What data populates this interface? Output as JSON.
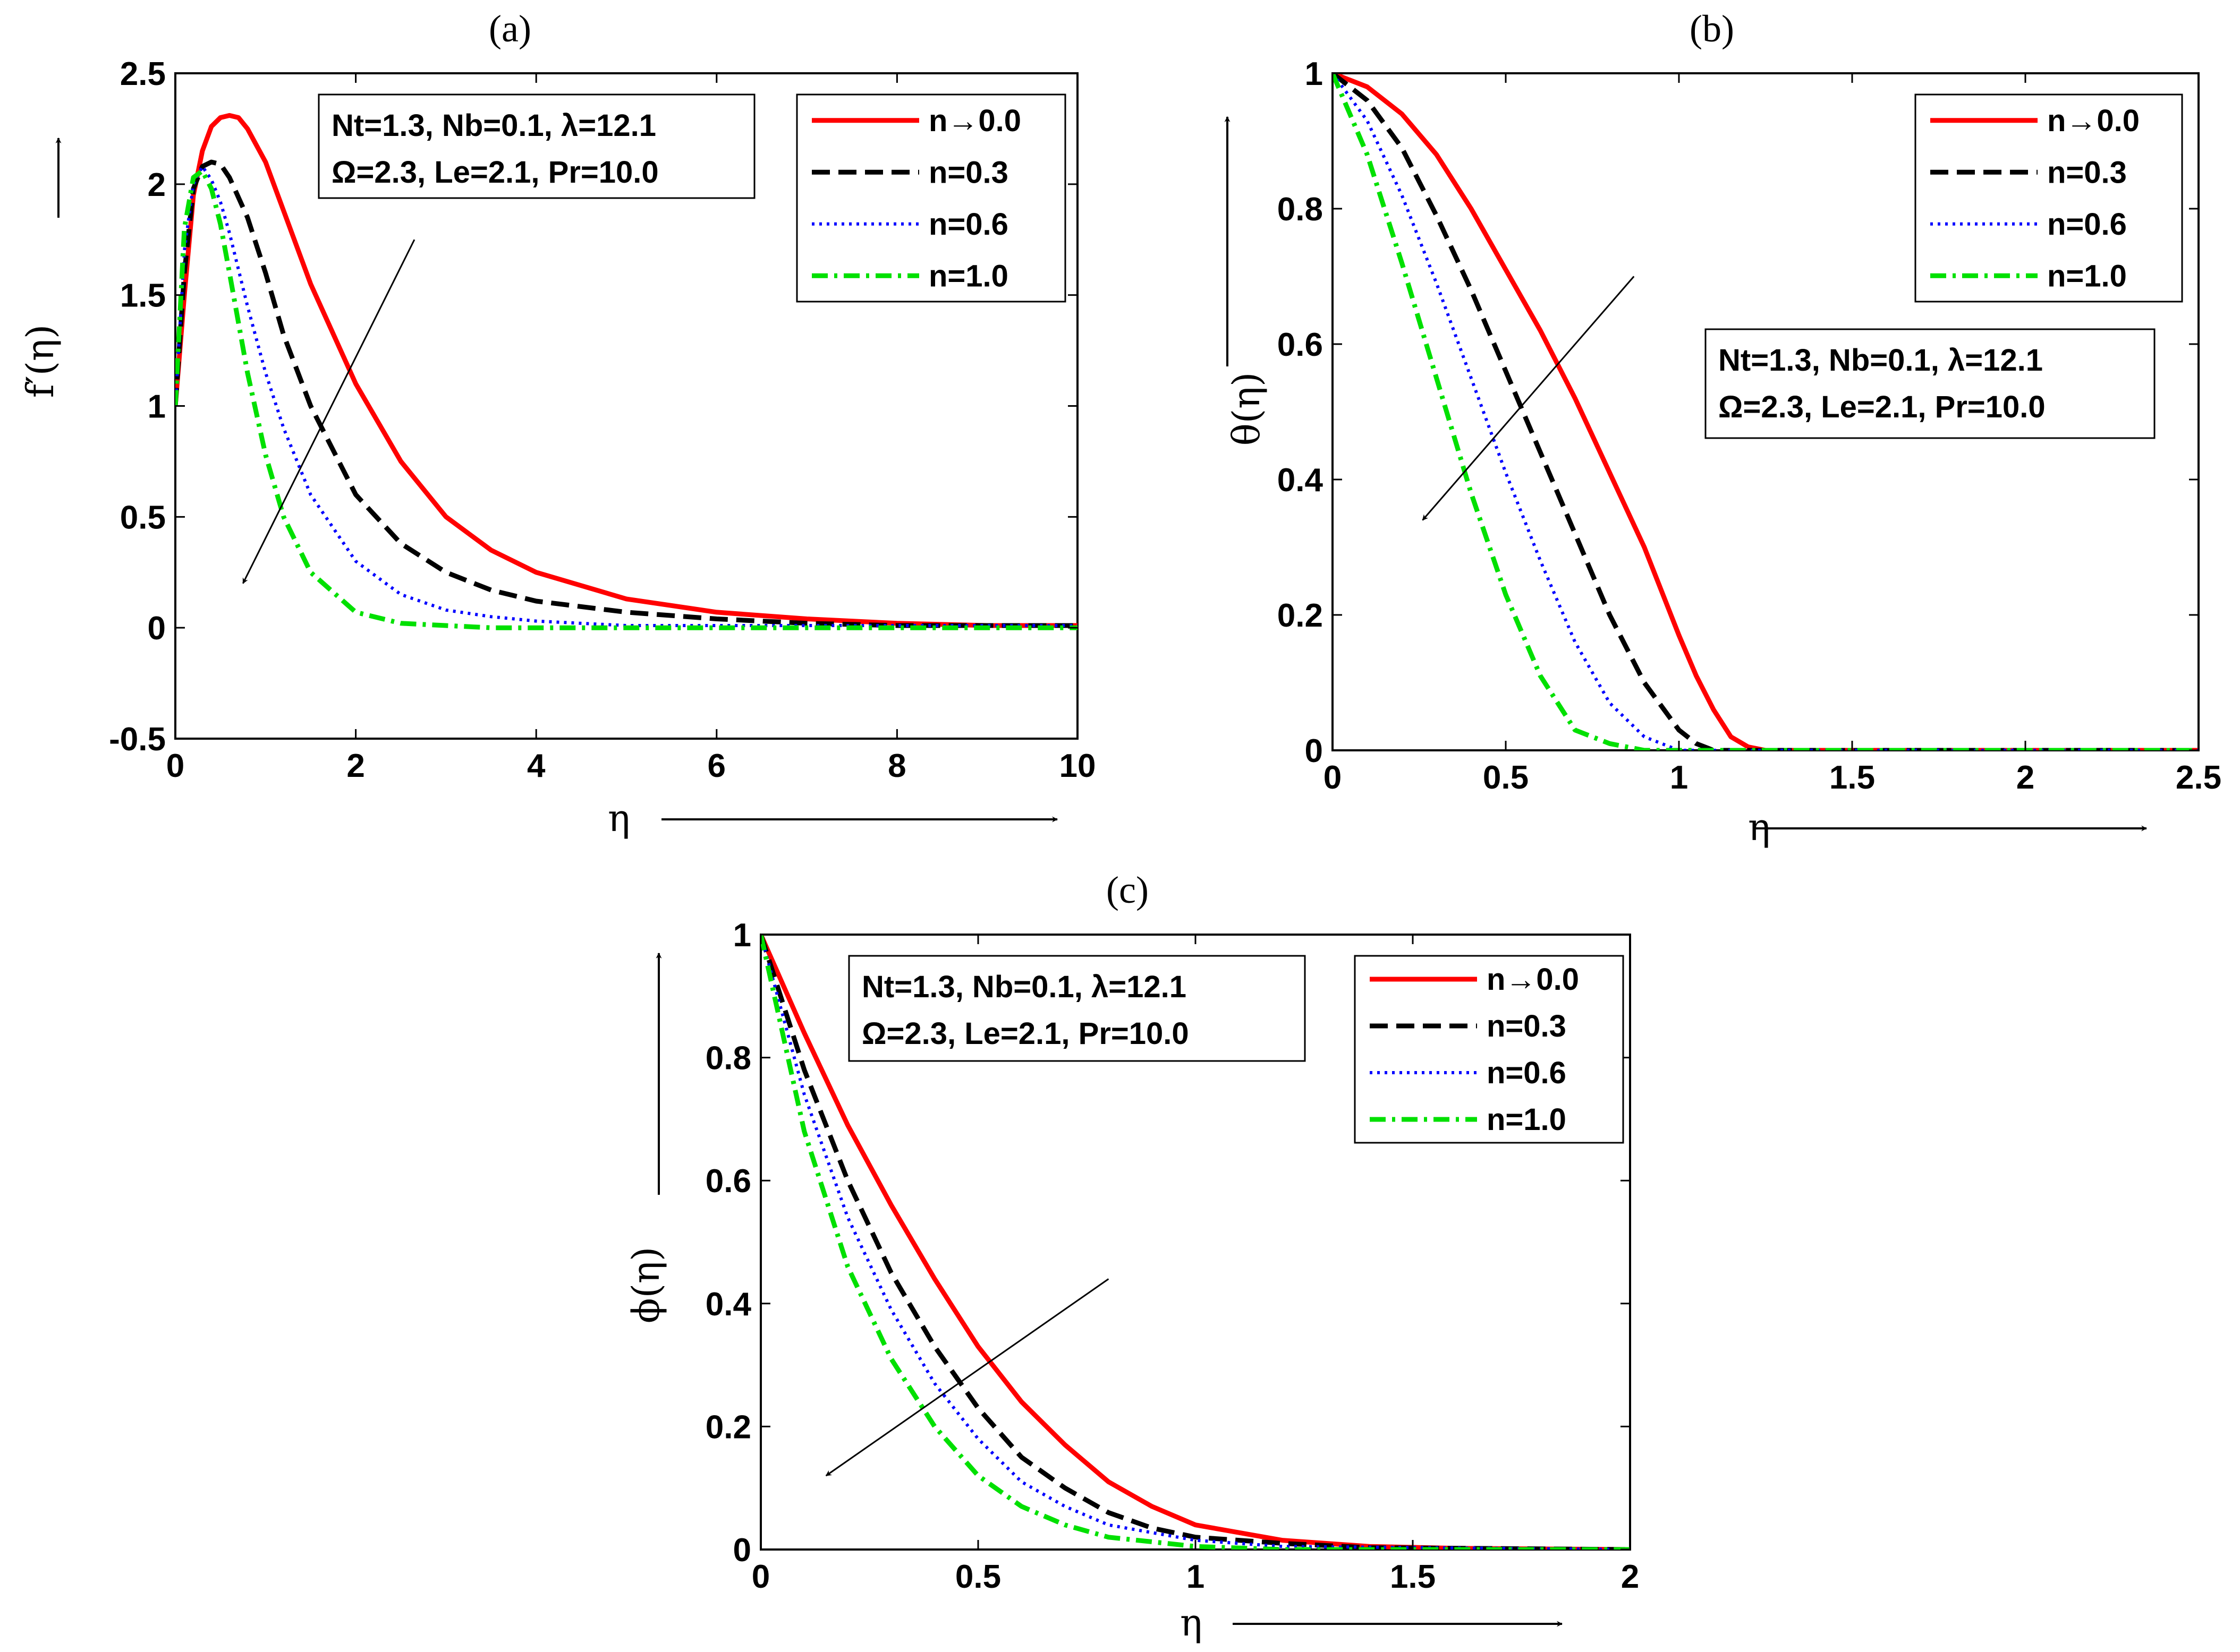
{
  "figure": {
    "colors": {
      "series": [
        "#ff0000",
        "#000000",
        "#0000ff",
        "#00e000"
      ]
    }
  },
  "chart_data": [
    {
      "id": "a",
      "type": "line",
      "panel_label": "(a)",
      "xlabel": "η",
      "ylabel": "f′(η)",
      "xlim": [
        0,
        10
      ],
      "ylim": [
        -0.5,
        2.5
      ],
      "xticks": [
        0,
        2,
        4,
        6,
        8,
        10
      ],
      "yticks": [
        -0.5,
        0,
        0.5,
        1,
        1.5,
        2,
        2.5
      ],
      "xtick_labels": [
        "0",
        "2",
        "4",
        "6",
        "8",
        "10"
      ],
      "ytick_labels": [
        "-0.5",
        "0",
        "0.5",
        "1",
        "1.5",
        "2",
        "2.5"
      ],
      "legend_position": "top-right",
      "params_position": "top-left",
      "params": [
        "Nt=1.3, Nb=0.1, λ=12.1",
        "Ω=2.3, Le=2.1, Pr=10.0"
      ],
      "trend_arrow": {
        "from": [
          2.65,
          1.75
        ],
        "to": [
          0.75,
          0.2
        ],
        "meaning": "increasing n"
      },
      "series": [
        {
          "name": "n→0.0",
          "style": "solid",
          "x": [
            0,
            0.1,
            0.2,
            0.3,
            0.4,
            0.5,
            0.6,
            0.7,
            0.8,
            1.0,
            1.2,
            1.5,
            2.0,
            2.5,
            3.0,
            3.5,
            4.0,
            5.0,
            6.0,
            7.0,
            8.0,
            9.0,
            10.0
          ],
          "y": [
            1.0,
            1.5,
            1.95,
            2.15,
            2.26,
            2.3,
            2.31,
            2.3,
            2.25,
            2.1,
            1.88,
            1.55,
            1.1,
            0.75,
            0.5,
            0.35,
            0.25,
            0.13,
            0.07,
            0.04,
            0.02,
            0.01,
            0.01
          ]
        },
        {
          "name": "n=0.3",
          "style": "dashed",
          "x": [
            0,
            0.1,
            0.2,
            0.3,
            0.4,
            0.5,
            0.6,
            0.8,
            1.0,
            1.2,
            1.5,
            2.0,
            2.5,
            3.0,
            3.5,
            4.0,
            5.0,
            6.0,
            7.0,
            8.0,
            10.0
          ],
          "y": [
            1.0,
            1.6,
            1.98,
            2.08,
            2.1,
            2.09,
            2.03,
            1.85,
            1.6,
            1.32,
            1.0,
            0.6,
            0.38,
            0.25,
            0.17,
            0.12,
            0.07,
            0.04,
            0.02,
            0.01,
            0.01
          ]
        },
        {
          "name": "n=0.6",
          "style": "dotted",
          "x": [
            0,
            0.1,
            0.2,
            0.3,
            0.4,
            0.5,
            0.6,
            0.8,
            1.0,
            1.2,
            1.5,
            2.0,
            2.5,
            3.0,
            3.5,
            4.0,
            5.0,
            6.0,
            10.0
          ],
          "y": [
            1.0,
            1.7,
            2.0,
            2.08,
            2.02,
            1.92,
            1.78,
            1.45,
            1.15,
            0.9,
            0.6,
            0.3,
            0.15,
            0.08,
            0.05,
            0.03,
            0.01,
            0.01,
            0.01
          ]
        },
        {
          "name": "n=1.0",
          "style": "dashdot",
          "x": [
            0,
            0.1,
            0.2,
            0.3,
            0.4,
            0.5,
            0.6,
            0.8,
            1.0,
            1.2,
            1.5,
            2.0,
            2.5,
            3.0,
            3.5,
            4.0,
            5.0,
            10.0
          ],
          "y": [
            1.0,
            1.8,
            2.03,
            2.06,
            1.98,
            1.82,
            1.6,
            1.15,
            0.78,
            0.5,
            0.25,
            0.07,
            0.02,
            0.01,
            0.0,
            0.0,
            0.0,
            0.0
          ]
        }
      ]
    },
    {
      "id": "b",
      "type": "line",
      "panel_label": "(b)",
      "xlabel": "η",
      "ylabel": "θ(η)",
      "xlim": [
        0,
        2.5
      ],
      "ylim": [
        0,
        1
      ],
      "xticks": [
        0,
        0.5,
        1,
        1.5,
        2,
        2.5
      ],
      "yticks": [
        0,
        0.2,
        0.4,
        0.6,
        0.8,
        1
      ],
      "xtick_labels": [
        "0",
        "0.5",
        "1",
        "1.5",
        "2",
        "2.5"
      ],
      "ytick_labels": [
        "0",
        "0.2",
        "0.4",
        "0.6",
        "0.8",
        "1"
      ],
      "legend_position": "top-right",
      "params_position": "middle-right",
      "params": [
        "Nt=1.3, Nb=0.1, λ=12.1",
        "Ω=2.3, Le=2.1, Pr=10.0"
      ],
      "trend_arrow": {
        "from": [
          0.87,
          0.7
        ],
        "to": [
          0.26,
          0.34
        ],
        "meaning": "increasing n"
      },
      "series": [
        {
          "name": "n→0.0",
          "style": "solid",
          "x": [
            0,
            0.1,
            0.2,
            0.3,
            0.4,
            0.5,
            0.6,
            0.7,
            0.8,
            0.9,
            1.0,
            1.05,
            1.1,
            1.15,
            1.2,
            1.25,
            1.5,
            2.0,
            2.5
          ],
          "y": [
            1.0,
            0.98,
            0.94,
            0.88,
            0.8,
            0.71,
            0.62,
            0.52,
            0.41,
            0.3,
            0.17,
            0.11,
            0.06,
            0.02,
            0.005,
            0.0,
            0.0,
            0.0,
            0.0
          ]
        },
        {
          "name": "n=0.3",
          "style": "dashed",
          "x": [
            0,
            0.1,
            0.2,
            0.3,
            0.4,
            0.5,
            0.6,
            0.7,
            0.8,
            0.9,
            1.0,
            1.05,
            1.1,
            1.15,
            1.5,
            2.0,
            2.5
          ],
          "y": [
            1.0,
            0.96,
            0.89,
            0.79,
            0.68,
            0.56,
            0.44,
            0.32,
            0.2,
            0.1,
            0.03,
            0.01,
            0.0,
            0.0,
            0.0,
            0.0,
            0.0
          ]
        },
        {
          "name": "n=0.6",
          "style": "dotted",
          "x": [
            0,
            0.1,
            0.2,
            0.3,
            0.4,
            0.5,
            0.6,
            0.7,
            0.8,
            0.9,
            1.0,
            1.5,
            2.0,
            2.5
          ],
          "y": [
            1.0,
            0.93,
            0.82,
            0.69,
            0.55,
            0.41,
            0.28,
            0.16,
            0.07,
            0.02,
            0.0,
            0.0,
            0.0,
            0.0
          ]
        },
        {
          "name": "n=1.0",
          "style": "dashdot",
          "x": [
            0,
            0.1,
            0.2,
            0.3,
            0.4,
            0.5,
            0.6,
            0.7,
            0.8,
            0.9,
            1.0,
            1.5,
            2.0,
            2.5
          ],
          "y": [
            1.0,
            0.88,
            0.72,
            0.55,
            0.38,
            0.23,
            0.11,
            0.03,
            0.01,
            0.0,
            0.0,
            0.0,
            0.0,
            0.0
          ]
        }
      ]
    },
    {
      "id": "c",
      "type": "line",
      "panel_label": "(c)",
      "xlabel": "η",
      "ylabel": "ϕ(η)",
      "xlim": [
        0,
        2
      ],
      "ylim": [
        0,
        1
      ],
      "xticks": [
        0,
        0.5,
        1,
        1.5,
        2
      ],
      "yticks": [
        0,
        0.2,
        0.4,
        0.6,
        0.8,
        1
      ],
      "xtick_labels": [
        "0",
        "0.5",
        "1",
        "1.5",
        "2"
      ],
      "ytick_labels": [
        "0",
        "0.2",
        "0.4",
        "0.6",
        "0.8",
        "1"
      ],
      "legend_position": "top-right",
      "params_position": "top-left",
      "params": [
        "Nt=1.3, Nb=0.1, λ=12.1",
        "Ω=2.3, Le=2.1, Pr=10.0"
      ],
      "trend_arrow": {
        "from": [
          0.8,
          0.44
        ],
        "to": [
          0.15,
          0.12
        ],
        "meaning": "increasing n"
      },
      "series": [
        {
          "name": "n→0.0",
          "style": "solid",
          "x": [
            0,
            0.1,
            0.2,
            0.3,
            0.4,
            0.5,
            0.6,
            0.7,
            0.8,
            0.9,
            1.0,
            1.2,
            1.4,
            1.6,
            2.0
          ],
          "y": [
            1.0,
            0.84,
            0.69,
            0.56,
            0.44,
            0.33,
            0.24,
            0.17,
            0.11,
            0.07,
            0.04,
            0.015,
            0.005,
            0.002,
            0.0
          ]
        },
        {
          "name": "n=0.3",
          "style": "dashed",
          "x": [
            0,
            0.1,
            0.2,
            0.3,
            0.4,
            0.5,
            0.6,
            0.7,
            0.8,
            0.9,
            1.0,
            1.2,
            1.4,
            2.0
          ],
          "y": [
            1.0,
            0.78,
            0.6,
            0.45,
            0.33,
            0.23,
            0.15,
            0.1,
            0.06,
            0.035,
            0.02,
            0.01,
            0.003,
            0.0
          ]
        },
        {
          "name": "n=0.6",
          "style": "dotted",
          "x": [
            0,
            0.1,
            0.2,
            0.3,
            0.4,
            0.5,
            0.6,
            0.7,
            0.8,
            1.0,
            1.2,
            2.0
          ],
          "y": [
            1.0,
            0.74,
            0.54,
            0.39,
            0.27,
            0.18,
            0.11,
            0.07,
            0.04,
            0.015,
            0.005,
            0.0
          ]
        },
        {
          "name": "n=1.0",
          "style": "dashdot",
          "x": [
            0,
            0.1,
            0.2,
            0.3,
            0.4,
            0.5,
            0.6,
            0.7,
            0.8,
            1.0,
            1.2,
            2.0
          ],
          "y": [
            1.0,
            0.68,
            0.46,
            0.31,
            0.2,
            0.12,
            0.07,
            0.04,
            0.02,
            0.005,
            0.0,
            0.0
          ]
        }
      ]
    }
  ]
}
